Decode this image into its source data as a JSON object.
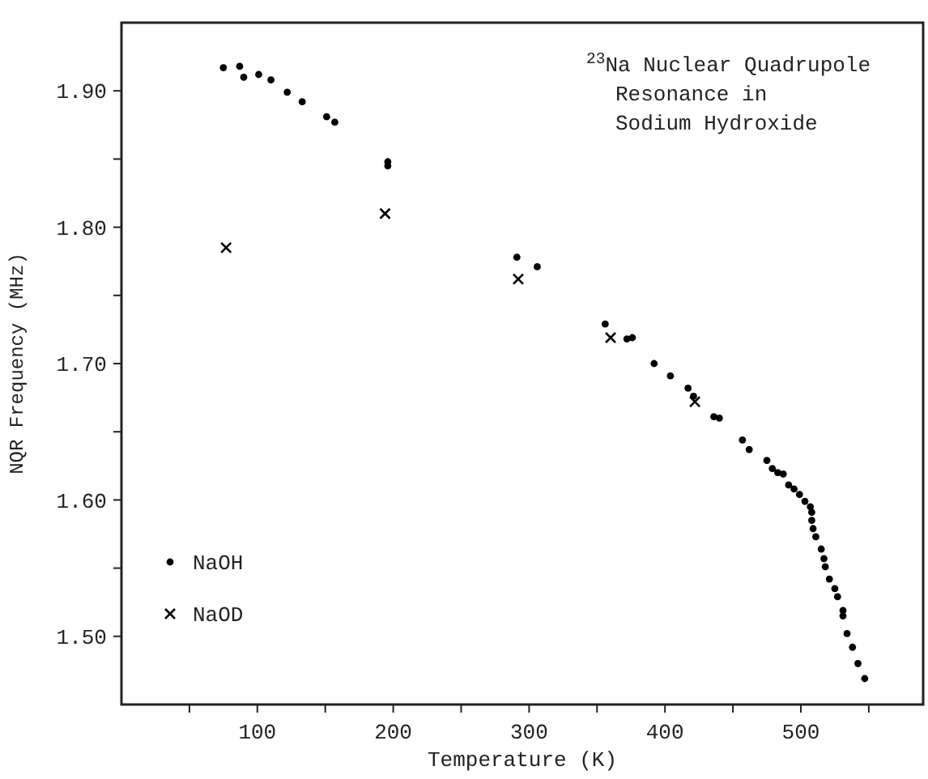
{
  "chart_data": {
    "type": "scatter",
    "title": "$^{23}$Na Nuclear Quadrupole\nResonance in\nSodium Hydroxide",
    "xlabel": "Temperature (K)",
    "ylabel": "NQR Frequency (MHz)",
    "xlim": [
      0,
      590
    ],
    "ylim": [
      1.45,
      1.95
    ],
    "xticks": [
      {
        "value": 50,
        "label": null
      },
      100,
      {
        "value": 150,
        "label": null
      },
      200,
      {
        "value": 250,
        "label": null
      },
      300,
      {
        "value": 350,
        "label": null
      },
      400,
      {
        "value": 450,
        "label": null
      },
      500,
      {
        "value": 550,
        "label": null
      }
    ],
    "yticks": [
      {
        "value": 1.5,
        "label": "1.50"
      },
      {
        "value": 1.55,
        "label": null
      },
      {
        "value": 1.6,
        "label": "1.60"
      },
      {
        "value": 1.65,
        "label": null
      },
      {
        "value": 1.7,
        "label": "1.70"
      },
      {
        "value": 1.75,
        "label": null
      },
      {
        "value": 1.8,
        "label": "1.80"
      },
      {
        "value": 1.85,
        "label": null
      },
      {
        "value": 1.9,
        "label": "1.90"
      }
    ],
    "grid": false,
    "legend": "bottom left",
    "series": [
      {
        "name": "NaOH",
        "color": "#000000",
        "marker": "circle",
        "x": [
          75,
          87,
          90,
          101,
          110,
          122,
          133,
          151,
          157,
          196,
          196,
          291,
          306,
          356,
          372,
          376,
          392,
          404,
          417,
          421,
          436,
          440,
          457,
          462,
          475,
          479,
          483,
          487,
          491,
          495,
          499,
          503,
          507,
          508,
          508,
          509,
          511,
          515,
          517,
          518,
          521,
          525,
          527,
          531,
          531,
          534,
          538,
          542,
          547
        ],
        "values": [
          1.917,
          1.918,
          1.91,
          1.912,
          1.908,
          1.899,
          1.892,
          1.881,
          1.877,
          1.848,
          1.845,
          1.778,
          1.771,
          1.729,
          1.718,
          1.719,
          1.7,
          1.691,
          1.682,
          1.676,
          1.661,
          1.66,
          1.644,
          1.637,
          1.629,
          1.623,
          1.62,
          1.619,
          1.611,
          1.608,
          1.604,
          1.599,
          1.595,
          1.591,
          1.585,
          1.579,
          1.573,
          1.564,
          1.557,
          1.551,
          1.542,
          1.535,
          1.529,
          1.519,
          1.515,
          1.502,
          1.492,
          1.48,
          1.469
        ]
      },
      {
        "name": "NaOD",
        "color": "#000000",
        "marker": "cross",
        "x": [
          77,
          194,
          292,
          360,
          422
        ],
        "values": [
          1.785,
          1.81,
          1.762,
          1.719,
          1.672
        ]
      }
    ]
  }
}
